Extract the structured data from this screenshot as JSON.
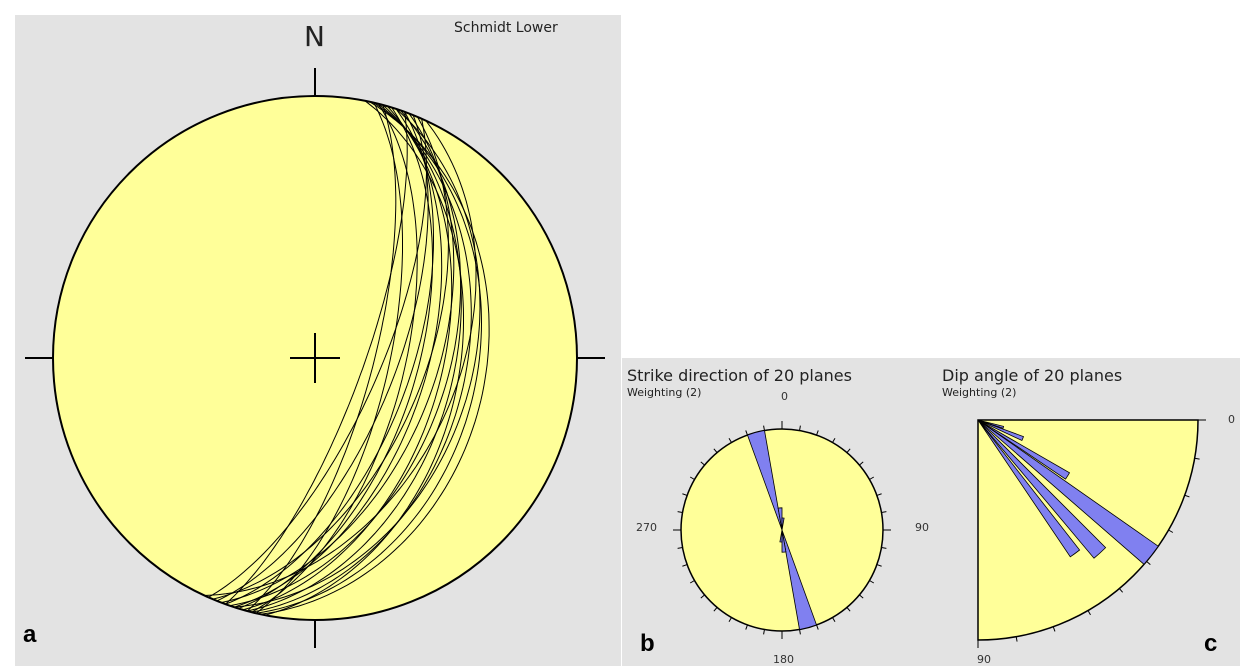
{
  "panel_a": {
    "letter": "a",
    "north_label": "N",
    "projection_label": "Schmidt Lower",
    "planes": [
      {
        "strike": 18,
        "dip": 55
      },
      {
        "strike": 16,
        "dip": 50
      },
      {
        "strike": 15,
        "dip": 46
      },
      {
        "strike": 14,
        "dip": 42
      },
      {
        "strike": 13,
        "dip": 38
      },
      {
        "strike": 20,
        "dip": 60
      },
      {
        "strike": 22,
        "dip": 65
      },
      {
        "strike": 12,
        "dip": 35
      },
      {
        "strike": 19,
        "dip": 48
      },
      {
        "strike": 24,
        "dip": 70
      },
      {
        "strike": 17,
        "dip": 58
      },
      {
        "strike": 11,
        "dip": 44
      },
      {
        "strike": 21,
        "dip": 52
      },
      {
        "strike": 14,
        "dip": 62
      },
      {
        "strike": 25,
        "dip": 45
      },
      {
        "strike": 15,
        "dip": 72
      },
      {
        "strike": 18,
        "dip": 40
      },
      {
        "strike": 20,
        "dip": 75
      },
      {
        "strike": 13,
        "dip": 67
      },
      {
        "strike": 23,
        "dip": 56
      }
    ]
  },
  "panel_b": {
    "letter": "b",
    "title": "Strike direction of 20 planes",
    "weighting": "Weighting (2)",
    "labels": {
      "n": "0",
      "e": "90",
      "s": "180",
      "w": "270"
    },
    "petals": [
      {
        "from": 340,
        "to": 350,
        "length": 1.0
      },
      {
        "from": 160,
        "to": 170,
        "length": 1.0
      },
      {
        "from": 350,
        "to": 360,
        "length": 0.22
      },
      {
        "from": 170,
        "to": 180,
        "length": 0.22
      },
      {
        "from": 0,
        "to": 10,
        "length": 0.12
      },
      {
        "from": 180,
        "to": 190,
        "length": 0.12
      }
    ]
  },
  "panel_c": {
    "letter": "c",
    "title": "Dip angle of 20 planes",
    "weighting": "Weighting (2)",
    "labels": {
      "start": "0",
      "end": "90"
    },
    "petals": [
      {
        "from": 35,
        "to": 41,
        "length": 1.0
      },
      {
        "from": 45,
        "to": 50,
        "length": 0.82
      },
      {
        "from": 52,
        "to": 56,
        "length": 0.75
      },
      {
        "from": 30,
        "to": 34,
        "length": 0.48
      },
      {
        "from": 20,
        "to": 25,
        "length": 0.22
      },
      {
        "from": 14,
        "to": 18,
        "length": 0.12
      }
    ]
  },
  "colors": {
    "background": "#e3e3e3",
    "net_fill": "#ffff99",
    "petal_fill": "#8080f0",
    "line": "#000000"
  }
}
